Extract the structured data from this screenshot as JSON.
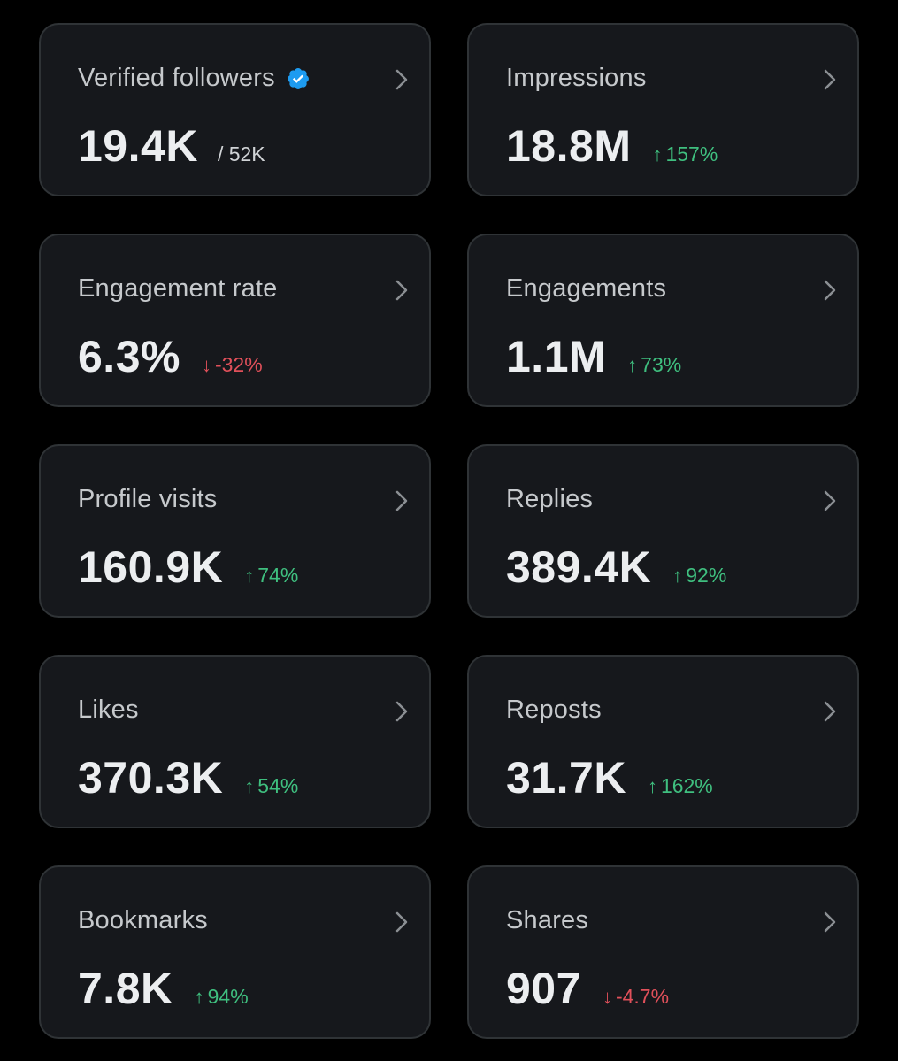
{
  "colors": {
    "background": "#000000",
    "card": "#16181c",
    "card_border": "#2f3336",
    "positive": "#3fbf7f",
    "negative": "#e0505a",
    "verified_badge": "#1d9bf0"
  },
  "cards": [
    {
      "title": "Verified followers",
      "value": "19.4K",
      "sub_value": "/ 52K",
      "badge_icon": "verified-badge-icon",
      "chevron_icon": "chevron-right-icon"
    },
    {
      "title": "Impressions",
      "value": "18.8M",
      "delta_arrow": "↑",
      "delta": "157%",
      "direction": "up",
      "chevron_icon": "chevron-right-icon"
    },
    {
      "title": "Engagement rate",
      "value": "6.3%",
      "delta_arrow": "↓",
      "delta": "-32%",
      "direction": "down",
      "chevron_icon": "chevron-right-icon"
    },
    {
      "title": "Engagements",
      "value": "1.1M",
      "delta_arrow": "↑",
      "delta": "73%",
      "direction": "up",
      "chevron_icon": "chevron-right-icon"
    },
    {
      "title": "Profile visits",
      "value": "160.9K",
      "delta_arrow": "↑",
      "delta": "74%",
      "direction": "up",
      "chevron_icon": "chevron-right-icon"
    },
    {
      "title": "Replies",
      "value": "389.4K",
      "delta_arrow": "↑",
      "delta": "92%",
      "direction": "up",
      "chevron_icon": "chevron-right-icon"
    },
    {
      "title": "Likes",
      "value": "370.3K",
      "delta_arrow": "↑",
      "delta": "54%",
      "direction": "up",
      "chevron_icon": "chevron-right-icon"
    },
    {
      "title": "Reposts",
      "value": "31.7K",
      "delta_arrow": "↑",
      "delta": "162%",
      "direction": "up",
      "chevron_icon": "chevron-right-icon"
    },
    {
      "title": "Bookmarks",
      "value": "7.8K",
      "delta_arrow": "↑",
      "delta": "94%",
      "direction": "up",
      "chevron_icon": "chevron-right-icon"
    },
    {
      "title": "Shares",
      "value": "907",
      "delta_arrow": "↓",
      "delta": "-4.7%",
      "direction": "down",
      "chevron_icon": "chevron-right-icon"
    }
  ]
}
